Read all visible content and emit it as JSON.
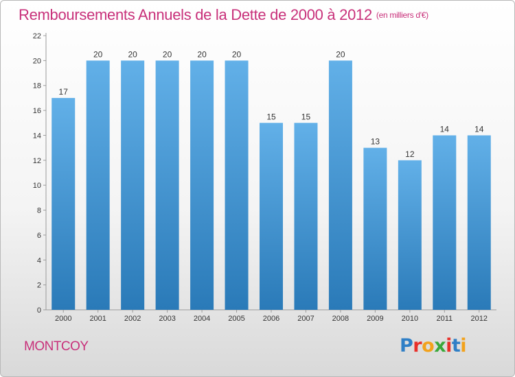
{
  "header": {
    "title": "Remboursements Annuels de la Dette de 2000 à 2012",
    "unit": "(en milliers d'€)"
  },
  "footer": {
    "commune": "MONTCOY",
    "logo": "Proxiti"
  },
  "colors": {
    "title": "#c8307a",
    "bar_top": "#62b0e8",
    "bar_bottom": "#2a7ab8",
    "logo_letters": [
      "#2f7fc6",
      "#e8302a",
      "#f2a21c",
      "#3aa83a",
      "#e8302a",
      "#2f7fc6",
      "#f2a21c"
    ]
  },
  "chart_data": {
    "type": "bar",
    "title": "Remboursements Annuels de la Dette de 2000 à 2012",
    "categories": [
      "2000",
      "2001",
      "2002",
      "2003",
      "2004",
      "2005",
      "2006",
      "2007",
      "2008",
      "2009",
      "2010",
      "2011",
      "2012"
    ],
    "values": [
      17,
      20,
      20,
      20,
      20,
      20,
      15,
      15,
      20,
      13,
      12,
      14,
      14
    ],
    "ylim": [
      0,
      22
    ],
    "yticks": [
      0,
      2,
      4,
      6,
      8,
      10,
      12,
      14,
      16,
      18,
      20,
      22
    ],
    "xlabel": "",
    "ylabel": "",
    "grid": false,
    "legend": "none"
  }
}
